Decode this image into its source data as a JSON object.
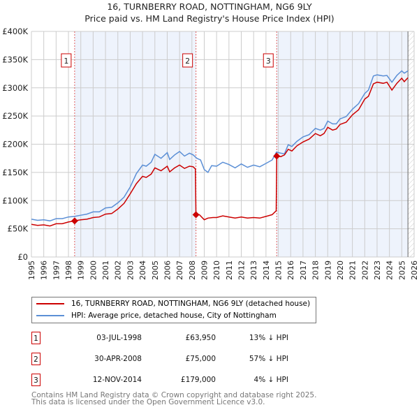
{
  "chart_data": {
    "type": "line",
    "title": "16, TURNBERRY ROAD, NOTTINGHAM, NG6 9LY",
    "subtitle": "Price paid vs. HM Land Registry's House Price Index (HPI)",
    "xlim": [
      1995,
      2026
    ],
    "ylim": [
      0,
      400000
    ],
    "y_ticks": [
      {
        "v": 0,
        "label": "£0"
      },
      {
        "v": 50000,
        "label": "£50K"
      },
      {
        "v": 100000,
        "label": "£100K"
      },
      {
        "v": 150000,
        "label": "£150K"
      },
      {
        "v": 200000,
        "label": "£200K"
      },
      {
        "v": 250000,
        "label": "£250K"
      },
      {
        "v": 300000,
        "label": "£300K"
      },
      {
        "v": 350000,
        "label": "£350K"
      },
      {
        "v": 400000,
        "label": "£400K"
      }
    ],
    "x_ticks": [
      "1995",
      "1996",
      "1997",
      "1998",
      "1999",
      "2000",
      "2001",
      "2002",
      "2003",
      "2004",
      "2005",
      "2006",
      "2007",
      "2008",
      "2009",
      "2010",
      "2011",
      "2012",
      "2013",
      "2014",
      "2015",
      "2016",
      "2017",
      "2018",
      "2019",
      "2020",
      "2021",
      "2022",
      "2023",
      "2024",
      "2025",
      "2026"
    ],
    "grid": true,
    "series": [
      {
        "name": "16, TURNBERRY ROAD, NOTTINGHAM, NG6 9LY (detached house)",
        "color": "#cc0000",
        "points": [
          [
            1995,
            58000
          ],
          [
            1995.5,
            56000
          ],
          [
            1996,
            57000
          ],
          [
            1996.5,
            55000
          ],
          [
            1997,
            59000
          ],
          [
            1997.5,
            59000
          ],
          [
            1998,
            62000
          ],
          [
            1998.5,
            64000
          ],
          [
            1999,
            66000
          ],
          [
            1999.5,
            67000
          ],
          [
            2000,
            70000
          ],
          [
            2000.5,
            71000
          ],
          [
            2001,
            76000
          ],
          [
            2001.5,
            77000
          ],
          [
            2002,
            85000
          ],
          [
            2002.5,
            95000
          ],
          [
            2003,
            112000
          ],
          [
            2003.5,
            130000
          ],
          [
            2004,
            143000
          ],
          [
            2004.3,
            141000
          ],
          [
            2004.7,
            147000
          ],
          [
            2005,
            158000
          ],
          [
            2005.5,
            153000
          ],
          [
            2006,
            161000
          ],
          [
            2006.2,
            151000
          ],
          [
            2006.6,
            158000
          ],
          [
            2007,
            163000
          ],
          [
            2007.4,
            157000
          ],
          [
            2007.8,
            161000
          ],
          [
            2008.1,
            160000
          ],
          [
            2008.28,
            156000
          ],
          [
            2008.33,
            75000
          ],
          [
            2008.6,
            75000
          ],
          [
            2009,
            66000
          ],
          [
            2009.3,
            69000
          ],
          [
            2009.7,
            70000
          ],
          [
            2010,
            70000
          ],
          [
            2010.5,
            73000
          ],
          [
            2011,
            71000
          ],
          [
            2011.5,
            69000
          ],
          [
            2012,
            71000
          ],
          [
            2012.5,
            69000
          ],
          [
            2013,
            70000
          ],
          [
            2013.5,
            69000
          ],
          [
            2014,
            72000
          ],
          [
            2014.5,
            75000
          ],
          [
            2014.83,
            82000
          ],
          [
            2014.87,
            179000
          ],
          [
            2015.2,
            178000
          ],
          [
            2015.5,
            181000
          ],
          [
            2015.8,
            191000
          ],
          [
            2016.1,
            188000
          ],
          [
            2016.5,
            197000
          ],
          [
            2017,
            204000
          ],
          [
            2017.5,
            209000
          ],
          [
            2018,
            219000
          ],
          [
            2018.4,
            215000
          ],
          [
            2018.7,
            219000
          ],
          [
            2019,
            230000
          ],
          [
            2019.4,
            225000
          ],
          [
            2019.7,
            227000
          ],
          [
            2020,
            235000
          ],
          [
            2020.5,
            239000
          ],
          [
            2021,
            252000
          ],
          [
            2021.5,
            261000
          ],
          [
            2022,
            280000
          ],
          [
            2022.3,
            285000
          ],
          [
            2022.7,
            307000
          ],
          [
            2023,
            310000
          ],
          [
            2023.5,
            308000
          ],
          [
            2023.8,
            310000
          ],
          [
            2024.2,
            296000
          ],
          [
            2024.6,
            308000
          ],
          [
            2025,
            317000
          ],
          [
            2025.2,
            311000
          ],
          [
            2025.5,
            318000
          ]
        ]
      },
      {
        "name": "HPI: Average price, detached house, City of Nottingham",
        "color": "#5b8fd6",
        "points": [
          [
            1995,
            67000
          ],
          [
            1995.5,
            65000
          ],
          [
            1996,
            66000
          ],
          [
            1996.5,
            64000
          ],
          [
            1997,
            68000
          ],
          [
            1997.5,
            68000
          ],
          [
            1998,
            71000
          ],
          [
            1998.5,
            72000
          ],
          [
            1999,
            74000
          ],
          [
            1999.5,
            76000
          ],
          [
            2000,
            80000
          ],
          [
            2000.5,
            80000
          ],
          [
            2001,
            87000
          ],
          [
            2001.5,
            88000
          ],
          [
            2002,
            96000
          ],
          [
            2002.5,
            106000
          ],
          [
            2003,
            124000
          ],
          [
            2003.5,
            148000
          ],
          [
            2004,
            163000
          ],
          [
            2004.3,
            161000
          ],
          [
            2004.7,
            168000
          ],
          [
            2005,
            182000
          ],
          [
            2005.5,
            175000
          ],
          [
            2006,
            185000
          ],
          [
            2006.2,
            173000
          ],
          [
            2006.6,
            181000
          ],
          [
            2007,
            187000
          ],
          [
            2007.4,
            179000
          ],
          [
            2007.8,
            184000
          ],
          [
            2008.1,
            181000
          ],
          [
            2008.4,
            175000
          ],
          [
            2008.7,
            172000
          ],
          [
            2009,
            155000
          ],
          [
            2009.3,
            150000
          ],
          [
            2009.6,
            162000
          ],
          [
            2010,
            161000
          ],
          [
            2010.5,
            168000
          ],
          [
            2011,
            164000
          ],
          [
            2011.5,
            158000
          ],
          [
            2012,
            165000
          ],
          [
            2012.5,
            159000
          ],
          [
            2013,
            163000
          ],
          [
            2013.5,
            160000
          ],
          [
            2014,
            166000
          ],
          [
            2014.5,
            172000
          ],
          [
            2014.85,
            186000
          ],
          [
            2015.2,
            184000
          ],
          [
            2015.5,
            183000
          ],
          [
            2015.8,
            199000
          ],
          [
            2016.1,
            196000
          ],
          [
            2016.5,
            205000
          ],
          [
            2017,
            213000
          ],
          [
            2017.5,
            217000
          ],
          [
            2018,
            228000
          ],
          [
            2018.4,
            225000
          ],
          [
            2018.7,
            228000
          ],
          [
            2019,
            241000
          ],
          [
            2019.4,
            236000
          ],
          [
            2019.7,
            236000
          ],
          [
            2020,
            245000
          ],
          [
            2020.5,
            249000
          ],
          [
            2021,
            262000
          ],
          [
            2021.5,
            272000
          ],
          [
            2022,
            290000
          ],
          [
            2022.3,
            296000
          ],
          [
            2022.7,
            321000
          ],
          [
            2023,
            323000
          ],
          [
            2023.5,
            321000
          ],
          [
            2023.8,
            322000
          ],
          [
            2024.2,
            310000
          ],
          [
            2024.6,
            322000
          ],
          [
            2025,
            330000
          ],
          [
            2025.2,
            326000
          ],
          [
            2025.5,
            330000
          ]
        ]
      }
    ],
    "sales": [
      {
        "n": "1",
        "x": 1998.5,
        "y": 63950
      },
      {
        "n": "2",
        "x": 2008.33,
        "y": 75000
      },
      {
        "n": "3",
        "x": 2014.87,
        "y": 179000
      }
    ],
    "forecast_start": 2025.5,
    "legend_placement": "below"
  },
  "legend": {
    "red": "16, TURNBERRY ROAD, NOTTINGHAM, NG6 9LY (detached house)",
    "blue": "HPI: Average price, detached house, City of Nottingham"
  },
  "transactions": [
    {
      "n": "1",
      "date": "03-JUL-1998",
      "price": "£63,950",
      "hpi": "13% ↓ HPI"
    },
    {
      "n": "2",
      "date": "30-APR-2008",
      "price": "£75,000",
      "hpi": "57% ↓ HPI"
    },
    {
      "n": "3",
      "date": "12-NOV-2014",
      "price": "£179,000",
      "hpi": "4% ↓ HPI"
    }
  ],
  "footer": {
    "line1": "Contains HM Land Registry data © Crown copyright and database right 2025.",
    "line2": "This data is licensed under the Open Government Licence v3.0."
  }
}
